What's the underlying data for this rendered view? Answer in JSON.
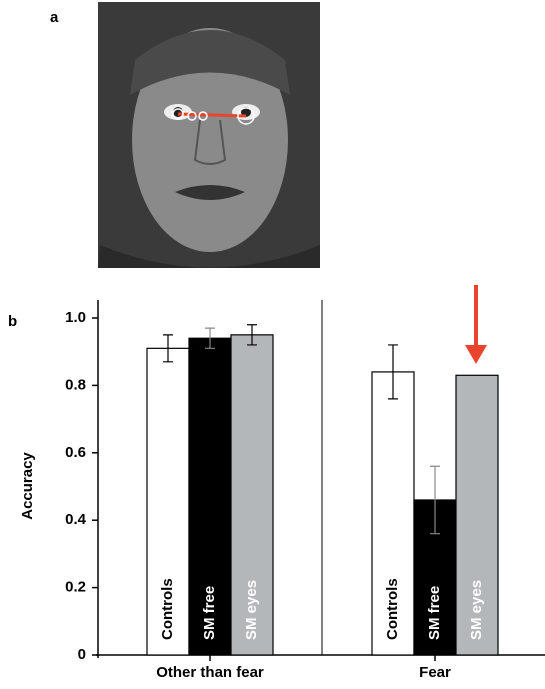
{
  "panel_a_label": "a",
  "panel_b_label": "b",
  "chart_data": {
    "type": "bar",
    "categories": [
      "Other than fear",
      "Fear"
    ],
    "ylabel": "Accuracy",
    "ylim": [
      0,
      1
    ],
    "yticks": [
      0,
      0.2,
      0.4,
      0.6,
      0.8,
      {
        "value": 1,
        "label": "1.0"
      }
    ],
    "series": [
      {
        "name": "Controls",
        "color": "#ffffff",
        "values": [
          0.91,
          0.84
        ],
        "errors": [
          0.04,
          0.08
        ]
      },
      {
        "name": "SM free",
        "color": "#000000",
        "values": [
          0.94,
          0.46
        ],
        "errors": [
          0.03,
          0.1
        ]
      },
      {
        "name": "SM eyes",
        "color": "#b4b7ba",
        "values": [
          0.95,
          0.83
        ],
        "errors": [
          0.03,
          null
        ]
      }
    ]
  }
}
